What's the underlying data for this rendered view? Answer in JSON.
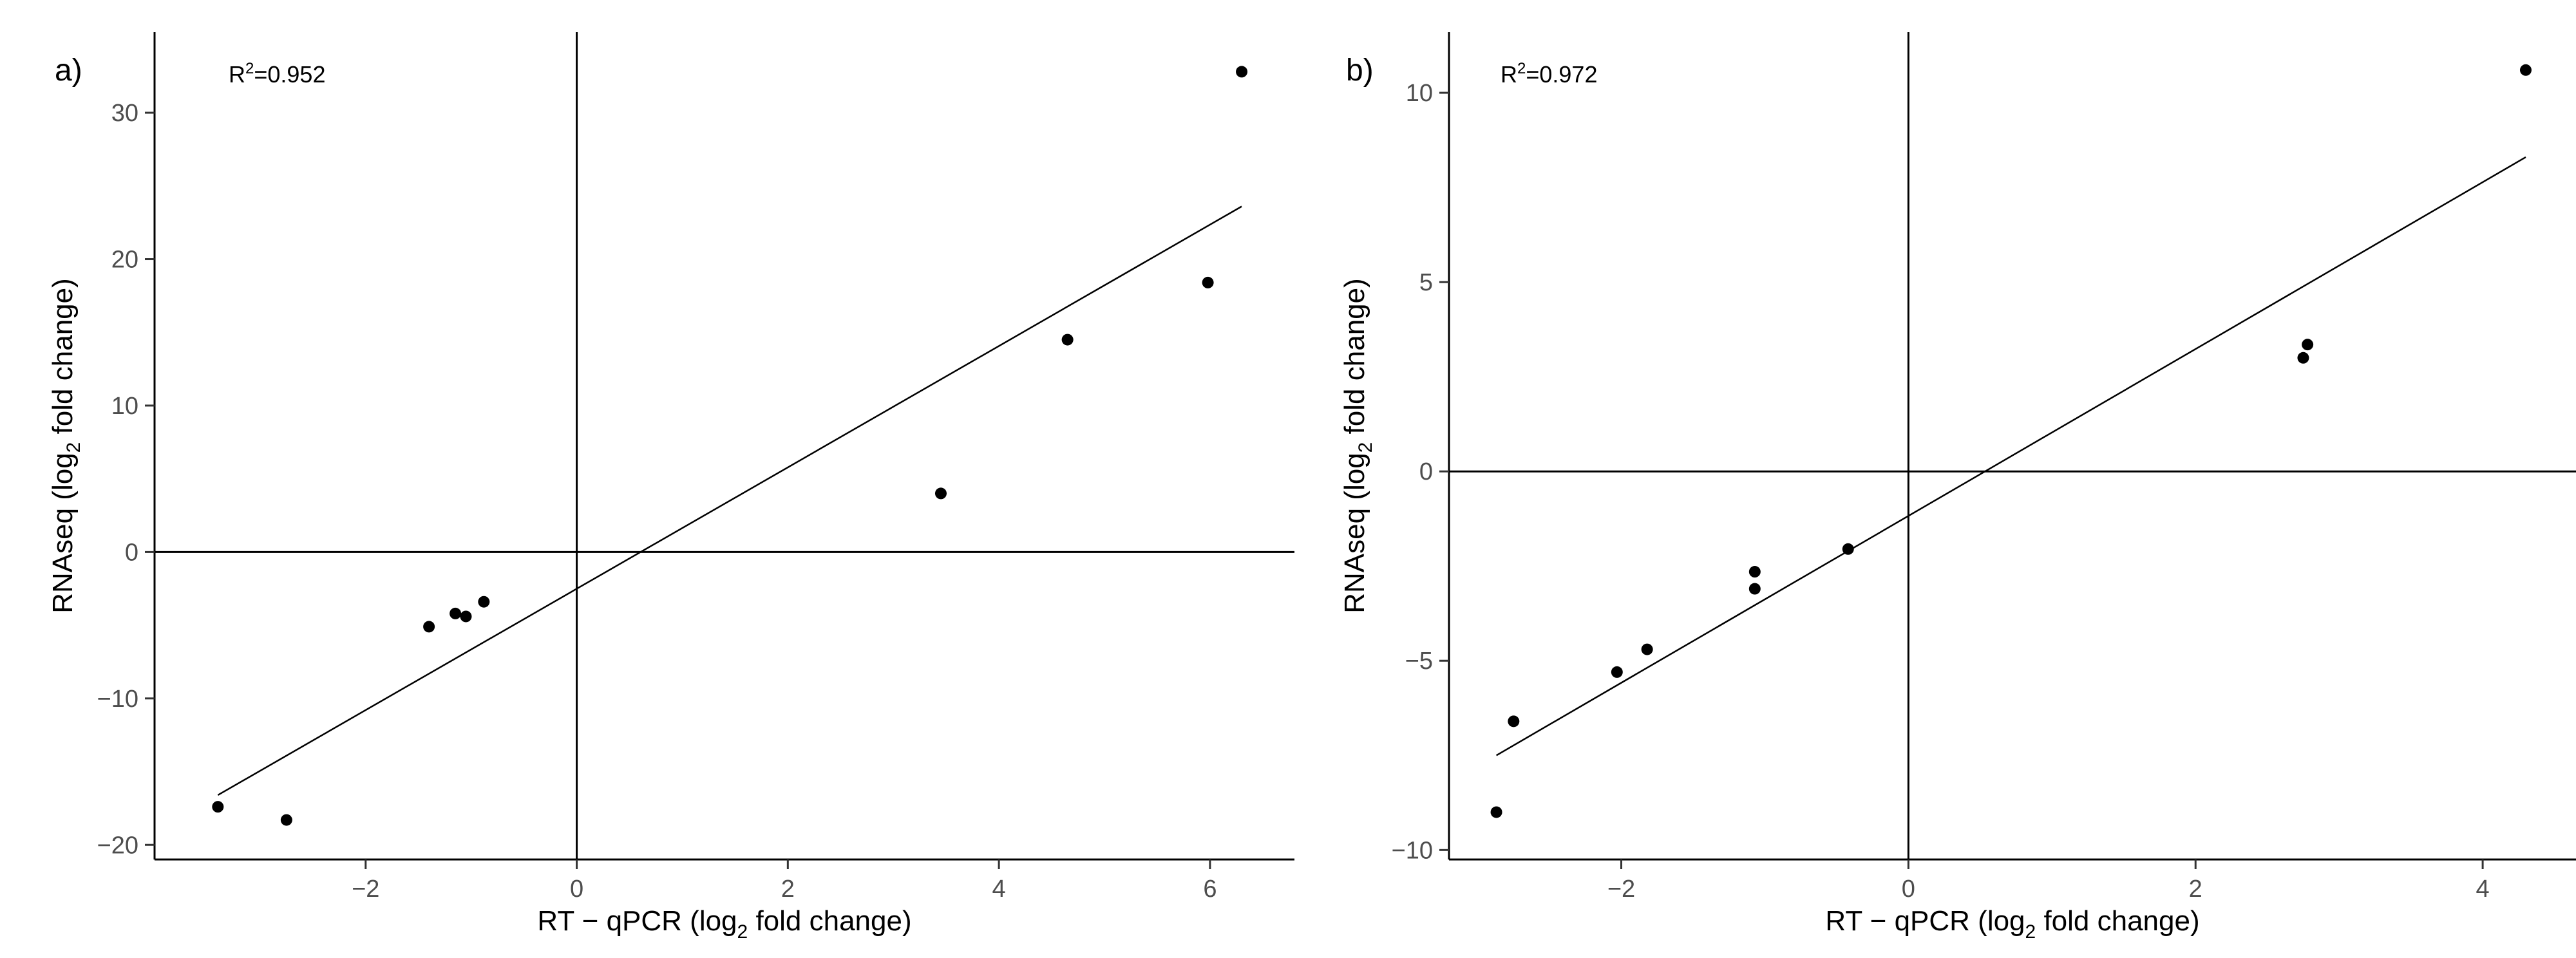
{
  "chart_data": [
    {
      "type": "scatter",
      "panel_label": "a)",
      "annotation": {
        "prefix": "R",
        "sup": "2",
        "suffix": "=0.952"
      },
      "xlabel": {
        "before": "RT − qPCR (log",
        "sub": "2",
        "after": " fold change)"
      },
      "ylabel": {
        "before": "RNAseq (log",
        "sub": "2",
        "after": " fold change)"
      },
      "xlim": [
        -4.0,
        6.8
      ],
      "ylim": [
        -21,
        35.5
      ],
      "xticks": [
        -2,
        0,
        2,
        4,
        6
      ],
      "yticks": [
        -20,
        -10,
        0,
        10,
        20,
        30
      ],
      "tick_labels_x": [
        "−2",
        "0",
        "2",
        "4",
        "6"
      ],
      "tick_labels_y": [
        "−20",
        "−10",
        "0",
        "10",
        "20",
        "30"
      ],
      "grid": false,
      "reference_lines": {
        "x": 0,
        "y": 0
      },
      "points": [
        {
          "x": -3.4,
          "y": -17.4
        },
        {
          "x": -2.75,
          "y": -18.3
        },
        {
          "x": -1.4,
          "y": -5.1
        },
        {
          "x": -1.15,
          "y": -4.2
        },
        {
          "x": -1.05,
          "y": -4.4
        },
        {
          "x": -0.88,
          "y": -3.4
        },
        {
          "x": 3.45,
          "y": 4.0
        },
        {
          "x": 4.65,
          "y": 14.5
        },
        {
          "x": 5.98,
          "y": 18.4
        },
        {
          "x": 6.3,
          "y": 32.8
        }
      ],
      "fit_line": {
        "x": [
          -3.4,
          6.3
        ],
        "y": [
          -16.6,
          23.6
        ]
      }
    },
    {
      "type": "scatter",
      "panel_label": "b)",
      "annotation": {
        "prefix": "R",
        "sup": "2",
        "suffix": "=0.972"
      },
      "xlabel": {
        "before": "RT − qPCR (log",
        "sub": "2",
        "after": " fold change)"
      },
      "ylabel": {
        "before": "RNAseq (log",
        "sub": "2",
        "after": " fold change)"
      },
      "xlim": [
        -3.2,
        4.65
      ],
      "ylim": [
        -10.25,
        11.6
      ],
      "xticks": [
        -2,
        0,
        2,
        4
      ],
      "yticks": [
        -10,
        -5,
        0,
        5,
        10
      ],
      "tick_labels_x": [
        "−2",
        "0",
        "2",
        "4"
      ],
      "tick_labels_y": [
        "−10",
        "−5",
        "0",
        "5",
        "10"
      ],
      "grid": false,
      "reference_lines": {
        "x": 0,
        "y": 0
      },
      "points": [
        {
          "x": -2.87,
          "y": -9.0
        },
        {
          "x": -2.75,
          "y": -6.6
        },
        {
          "x": -2.03,
          "y": -5.3
        },
        {
          "x": -1.82,
          "y": -4.7
        },
        {
          "x": -1.07,
          "y": -2.65
        },
        {
          "x": -1.07,
          "y": -3.1
        },
        {
          "x": -0.42,
          "y": -2.05
        },
        {
          "x": 2.75,
          "y": 3.0
        },
        {
          "x": 2.78,
          "y": 3.35
        },
        {
          "x": 4.3,
          "y": 10.6
        }
      ],
      "fit_line": {
        "x": [
          -2.87,
          4.3
        ],
        "y": [
          -7.5,
          8.3
        ]
      }
    }
  ]
}
